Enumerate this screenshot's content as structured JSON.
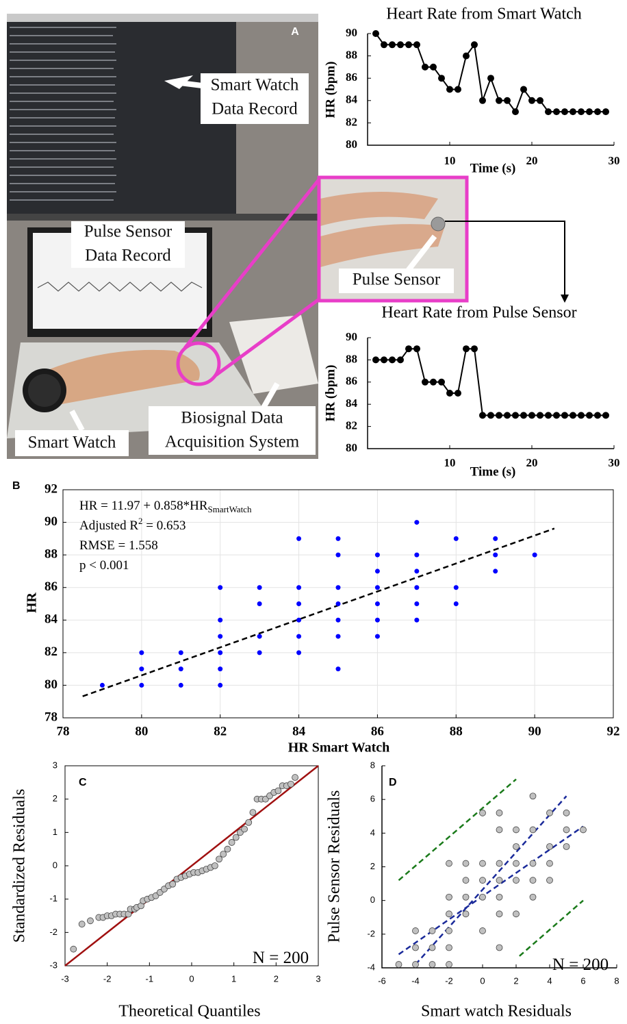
{
  "photo": {
    "panel": "A",
    "labels": [
      {
        "lines": [
          "Smart Watch",
          "Data Record"
        ]
      },
      {
        "lines": [
          "Pulse Sensor",
          "Data Record"
        ]
      },
      {
        "lines": [
          "Pulse Sensor"
        ]
      },
      {
        "lines": [
          "Smart Watch"
        ]
      },
      {
        "lines": [
          "Biosignal Data",
          "Acquisition System"
        ]
      }
    ]
  },
  "chart_data": [
    {
      "type": "line",
      "title": "Heart Rate from Smart Watch",
      "x_label": "Time (s)",
      "y_label": "HR (bpm)",
      "color": "#000000",
      "x": [
        1,
        2,
        3,
        4,
        5,
        6,
        7,
        8,
        9,
        10,
        11,
        12,
        13,
        14,
        15,
        16,
        17,
        18,
        19,
        20,
        21,
        22,
        23,
        24,
        25,
        26,
        27,
        28,
        29
      ],
      "values": [
        90,
        89,
        89,
        89,
        89,
        89,
        87,
        87,
        86,
        85,
        85,
        88,
        89,
        84,
        86,
        84,
        84,
        83,
        85,
        84,
        84,
        83,
        83,
        83,
        83,
        83,
        83,
        83,
        83
      ],
      "xlim": [
        0,
        30
      ],
      "xticks": [
        10,
        20,
        30
      ],
      "ylim": [
        80,
        90
      ],
      "yticks": [
        80,
        82,
        84,
        86,
        88,
        90
      ]
    },
    {
      "type": "line",
      "title": "Heart Rate from Pulse Sensor",
      "x_label": "Time (s)",
      "y_label": "HR (bpm)",
      "color": "#000000",
      "x": [
        1,
        2,
        3,
        4,
        5,
        6,
        7,
        8,
        9,
        10,
        11,
        12,
        13,
        14,
        15,
        16,
        17,
        18,
        19,
        20,
        21,
        22,
        23,
        24,
        25,
        26,
        27,
        28,
        29
      ],
      "values": [
        88,
        88,
        88,
        88,
        89,
        89,
        86,
        86,
        86,
        85,
        85,
        89,
        89,
        83,
        83,
        83,
        83,
        83,
        83,
        83,
        83,
        83,
        83,
        83,
        83,
        83,
        83,
        83,
        83
      ],
      "xlim": [
        0,
        30
      ],
      "xticks": [
        10,
        20,
        30
      ],
      "ylim": [
        80,
        90
      ],
      "yticks": [
        80,
        82,
        84,
        86,
        88,
        90
      ]
    },
    {
      "type": "scatter",
      "panel": "B",
      "x_label": "HR Smart Watch",
      "y_label": "HR",
      "color": "#0000ff",
      "grid": true,
      "x": [
        79,
        80,
        80,
        80,
        81,
        81,
        81,
        82,
        82,
        82,
        82,
        82,
        82,
        83,
        83,
        83,
        83,
        84,
        84,
        84,
        84,
        84,
        84,
        85,
        85,
        85,
        85,
        85,
        85,
        85,
        86,
        86,
        86,
        86,
        86,
        86,
        87,
        87,
        87,
        87,
        87,
        87,
        88,
        88,
        88,
        89,
        89,
        89,
        90
      ],
      "values": [
        80,
        80,
        81,
        82,
        80,
        81,
        82,
        80,
        81,
        82,
        83,
        84,
        86,
        82,
        83,
        85,
        86,
        82,
        83,
        84,
        85,
        86,
        89,
        81,
        83,
        84,
        85,
        86,
        88,
        89,
        83,
        84,
        85,
        86,
        87,
        88,
        84,
        85,
        86,
        87,
        88,
        90,
        85,
        86,
        89,
        87,
        88,
        89,
        88
      ],
      "lines": [
        {
          "color": "#000000",
          "dash": true,
          "x": [
            78.5,
            90.5
          ],
          "values": [
            79.32,
            89.62
          ]
        }
      ],
      "annotations": [
        {
          "text": "HR = 11.97 + 0.858*HR",
          "sub": "SmartWatch"
        },
        {
          "text": "Adjusted R",
          "sup": "2",
          "after": " = 0.653"
        },
        {
          "text": "RMSE = 1.558"
        },
        {
          "text": "p < 0.001"
        }
      ],
      "xlim": [
        78,
        92
      ],
      "xticks": [
        78,
        80,
        82,
        84,
        86,
        88,
        90,
        92
      ],
      "ylim": [
        78,
        92
      ],
      "yticks": [
        78,
        80,
        82,
        84,
        86,
        88,
        90,
        92
      ]
    },
    {
      "type": "scatter",
      "panel": "C",
      "x_label": "Theoretical Quantiles",
      "y_label": "Standardized Residuals",
      "color": "#c0c0c0",
      "x": [
        -2.8,
        -2.6,
        -2.4,
        -2.2,
        -2.1,
        -2.0,
        -1.9,
        -1.8,
        -1.7,
        -1.6,
        -1.5,
        -1.45,
        -1.35,
        -1.3,
        -1.2,
        -1.15,
        -1.05,
        -0.95,
        -0.85,
        -0.75,
        -0.65,
        -0.55,
        -0.45,
        -0.35,
        -0.25,
        -0.15,
        -0.05,
        0.05,
        0.15,
        0.25,
        0.35,
        0.45,
        0.55,
        0.65,
        0.75,
        0.85,
        0.95,
        1.05,
        1.15,
        1.25,
        1.35,
        1.45,
        1.55,
        1.65,
        1.75,
        1.85,
        1.95,
        2.05,
        2.15,
        2.25,
        2.35,
        2.45
      ],
      "values": [
        -2.5,
        -1.75,
        -1.65,
        -1.55,
        -1.55,
        -1.5,
        -1.5,
        -1.45,
        -1.45,
        -1.45,
        -1.45,
        -1.3,
        -1.3,
        -1.25,
        -1.2,
        -1.05,
        -1.0,
        -0.95,
        -0.9,
        -0.8,
        -0.7,
        -0.6,
        -0.55,
        -0.4,
        -0.35,
        -0.3,
        -0.25,
        -0.2,
        -0.2,
        -0.15,
        -0.1,
        -0.05,
        0.0,
        0.2,
        0.35,
        0.5,
        0.7,
        0.85,
        1.0,
        1.1,
        1.3,
        1.6,
        2.0,
        2.0,
        2.0,
        2.1,
        2.2,
        2.25,
        2.4,
        2.4,
        2.45,
        2.65
      ],
      "lines": [
        {
          "color": "#a01010",
          "dash": false,
          "x": [
            -3,
            3
          ],
          "values": [
            -3,
            3
          ]
        }
      ],
      "annotations": [
        {
          "text": "N = 200"
        }
      ],
      "xlim": [
        -3,
        3
      ],
      "xticks": [
        -3,
        -2,
        -1,
        0,
        1,
        2,
        3
      ],
      "ylim": [
        -3,
        3
      ],
      "yticks": [
        -3,
        -2,
        -1,
        0,
        1,
        2,
        3
      ]
    },
    {
      "type": "scatter",
      "panel": "D",
      "x_label": "Smart watch Residuals",
      "y_label": "Pulse Sensor Residuals",
      "color": "#c0c0c0",
      "x": [
        -5,
        -4,
        -4,
        -4,
        -3,
        -3,
        -3,
        -2,
        -2,
        -2,
        -2,
        -2,
        -2,
        -1,
        -1,
        -1,
        -1,
        0,
        0,
        0,
        0,
        0,
        1,
        1,
        1,
        1,
        1,
        1,
        1,
        2,
        2,
        2,
        2,
        2,
        3,
        3,
        3,
        3,
        3,
        4,
        4,
        4,
        4,
        5,
        5,
        5,
        6
      ],
      "values": [
        -3.8,
        -3.8,
        -2.8,
        -1.8,
        -3.8,
        -2.8,
        -1.8,
        -3.8,
        -2.8,
        -1.8,
        -0.8,
        0.2,
        2.2,
        -0.8,
        0.2,
        1.2,
        2.2,
        -1.8,
        0.2,
        1.2,
        2.2,
        5.2,
        -2.8,
        -0.8,
        0.2,
        1.2,
        2.2,
        4.2,
        5.2,
        -0.8,
        1.2,
        2.2,
        3.2,
        4.2,
        0.2,
        1.2,
        2.2,
        4.2,
        6.2,
        1.2,
        2.2,
        3.2,
        5.2,
        3.2,
        4.2,
        5.2,
        4.2
      ],
      "lines": [
        {
          "color": "#1a2a9a",
          "dash": true,
          "x": [
            -5,
            6
          ],
          "values": [
            -3.2,
            4.4
          ]
        },
        {
          "color": "#1a2a9a",
          "dash": true,
          "x": [
            -4,
            5
          ],
          "values": [
            -3.8,
            6.2
          ]
        },
        {
          "color": "#1a7a1a",
          "dash": true,
          "x": [
            -5,
            2
          ],
          "values": [
            1.2,
            7.2
          ]
        },
        {
          "color": "#1a7a1a",
          "dash": true,
          "x": [
            2.2,
            6
          ],
          "values": [
            -3.3,
            0
          ]
        }
      ],
      "annotations": [
        {
          "text": "N = 200"
        }
      ],
      "xlim": [
        -6,
        8
      ],
      "xticks": [
        -6,
        -4,
        -2,
        0,
        2,
        4,
        6,
        8
      ],
      "ylim": [
        -4,
        8
      ],
      "yticks": [
        -4,
        -2,
        0,
        2,
        4,
        6,
        8
      ]
    }
  ]
}
